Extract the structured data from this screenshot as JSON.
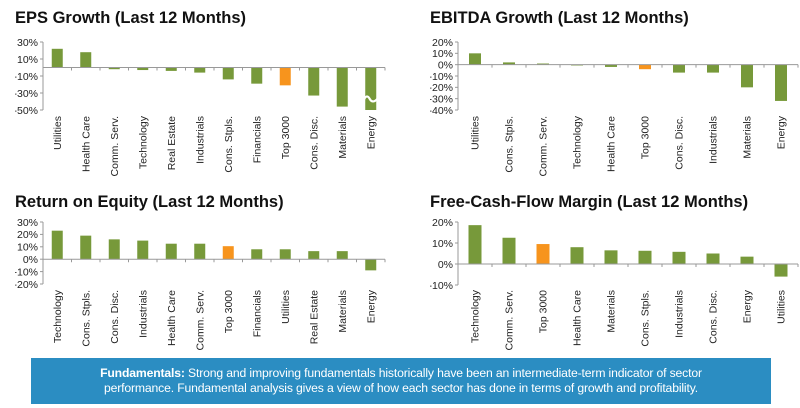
{
  "colors": {
    "bar": "#77993a",
    "highlight": "#f7941d",
    "axis": "#999999",
    "footer_bg": "#2b8dc2"
  },
  "chart_data": [
    {
      "id": "eps",
      "type": "bar",
      "title": "EPS Growth (Last 12 Months)",
      "xlabel": "",
      "ylabel": "",
      "ylim": [
        -50,
        30
      ],
      "yticks": [
        30,
        10,
        -10,
        -30,
        -50
      ],
      "ytick_labels": [
        "30%",
        "10%",
        "-10%",
        "-30%",
        "-50%"
      ],
      "categories": [
        "Utilities",
        "Health Care",
        "Comm. Serv.",
        "Technology",
        "Real Estate",
        "Industrials",
        "Cons. Stpls.",
        "Financials",
        "Top 3000",
        "Cons. Disc.",
        "Materials",
        "Energy"
      ],
      "values": [
        22,
        18,
        -2,
        -3,
        -4,
        -6,
        -14,
        -19,
        -21,
        -33,
        -46,
        -60
      ],
      "highlight": "Top 3000",
      "axis_break": "Energy",
      "grid": false,
      "legend": "none"
    },
    {
      "id": "ebitda",
      "type": "bar",
      "title": "EBITDA Growth (Last 12 Months)",
      "xlabel": "",
      "ylabel": "",
      "ylim": [
        -40,
        20
      ],
      "yticks": [
        20,
        10,
        0,
        -10,
        -20,
        -30,
        -40
      ],
      "ytick_labels": [
        "20%",
        "10%",
        "0%",
        "-10%",
        "-20%",
        "-30%",
        "-40%"
      ],
      "categories": [
        "Utilities",
        "Cons. Stpls.",
        "Comm. Serv.",
        "Technology",
        "Health Care",
        "Top 3000",
        "Cons. Disc.",
        "Industrials",
        "Materials",
        "Energy"
      ],
      "values": [
        10,
        2,
        1,
        -0.5,
        -2,
        -4,
        -7,
        -7,
        -20,
        -32
      ],
      "highlight": "Top 3000",
      "grid": false,
      "legend": "none"
    },
    {
      "id": "roe",
      "type": "bar",
      "title": "Return on Equity (Last 12 Months)",
      "xlabel": "",
      "ylabel": "",
      "ylim": [
        -20,
        30
      ],
      "yticks": [
        30,
        20,
        10,
        0,
        -10,
        -20
      ],
      "ytick_labels": [
        "30%",
        "20%",
        "10%",
        "0%",
        "-10%",
        "-20%"
      ],
      "categories": [
        "Technology",
        "Cons. Stpls.",
        "Cons. Disc.",
        "Industrials",
        "Health Care",
        "Comm. Serv.",
        "Top 3000",
        "Financials",
        "Utilities",
        "Real Estate",
        "Materials",
        "Energy"
      ],
      "values": [
        23,
        19,
        16,
        15,
        12.5,
        12.5,
        10.5,
        8,
        8,
        6.5,
        6.5,
        -9
      ],
      "highlight": "Top 3000",
      "grid": false,
      "legend": "none"
    },
    {
      "id": "fcf",
      "type": "bar",
      "title": "Free-Cash-Flow Margin (Last 12 Months)",
      "xlabel": "",
      "ylabel": "",
      "ylim": [
        -10,
        20
      ],
      "yticks": [
        20,
        10,
        0,
        -10
      ],
      "ytick_labels": [
        "20%",
        "10%",
        "0%",
        "-10%"
      ],
      "categories": [
        "Technology",
        "Comm. Serv.",
        "Top 3000",
        "Health Care",
        "Materials",
        "Cons. Stpls.",
        "Industrials",
        "Cons. Disc.",
        "Energy",
        "Utilities"
      ],
      "values": [
        18.5,
        12.5,
        9.5,
        8,
        6.5,
        6.3,
        5.8,
        5,
        3.5,
        -6
      ],
      "highlight": "Top 3000",
      "grid": false,
      "legend": "none"
    }
  ],
  "footer": {
    "label": "Fundamentals:",
    "text_line1": " Strong and improving fundamentals historically have been an intermediate-term indicator of sector",
    "text_line2": "performance. Fundamental analysis gives a view of how each sector has done in terms of growth and profitability."
  }
}
